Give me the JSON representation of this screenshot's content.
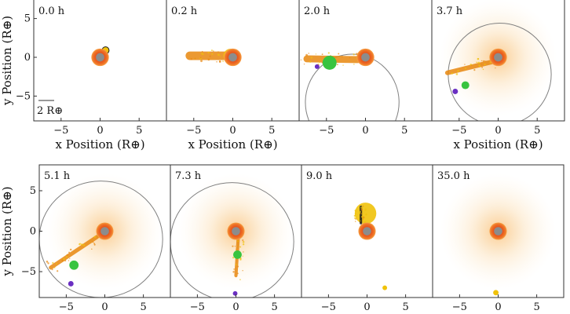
{
  "colors": {
    "frame": "#333333",
    "orbit": "#808080",
    "planet_core": "#8c8c8c",
    "planet_mantle": "#e8581c",
    "halo": "#f6a33a",
    "debris_orange": "#e8880f",
    "debris_yellow": "#f0c20a",
    "green_clump": "#38c440",
    "purple_clump": "#6a2fc2",
    "shadow": "#1a1a1a"
  },
  "scale_bar": {
    "label": "2 R⊕"
  },
  "chart_data": [
    {
      "type": "scatter",
      "time_label": "0.0 h",
      "xlim": [
        -8.5,
        8.5
      ],
      "ylim": [
        -8.2,
        8.2
      ],
      "xticks": [
        -5,
        0,
        5
      ],
      "yticks": [
        -5,
        0,
        5
      ],
      "xlabel": "x Position (R⊕)",
      "ylabel": "y Position (R⊕)",
      "planet": {
        "x": 0,
        "y": 0,
        "r": 0.9
      },
      "halo": false,
      "orbit": null,
      "features": [
        {
          "kind": "impactor",
          "x": 0.7,
          "y": 0.9,
          "r": 0.45,
          "color_key": "debris_yellow"
        }
      ]
    },
    {
      "type": "scatter",
      "time_label": "0.2 h",
      "xlim": [
        -8.5,
        8.5
      ],
      "ylim": [
        -8.2,
        8.2
      ],
      "xticks": [
        -5,
        0,
        5
      ],
      "yticks": [],
      "xlabel": "x Position (R⊕)",
      "ylabel": "",
      "planet": {
        "x": 0,
        "y": 0,
        "r": 0.9
      },
      "halo": false,
      "orbit": null,
      "features": [
        {
          "kind": "stream",
          "from": [
            -5.5,
            0.2
          ],
          "to": [
            -0.5,
            0.2
          ],
          "width": 1.1,
          "color_key": "debris_orange"
        },
        {
          "kind": "blob",
          "x": -0.3,
          "y": 0.2,
          "r": 0.9,
          "color_key": "debris_yellow"
        }
      ]
    },
    {
      "type": "scatter",
      "time_label": "2.0 h",
      "xlim": [
        -8.5,
        8.5
      ],
      "ylim": [
        -8.2,
        8.2
      ],
      "xticks": [
        -5,
        0,
        5
      ],
      "yticks": [],
      "xlabel": "",
      "ylabel": "",
      "planet": {
        "x": 0,
        "y": 0,
        "r": 0.9
      },
      "halo": false,
      "orbit": {
        "cx": -1.7,
        "cy": -5.8,
        "rx": 6.0,
        "ry": 6.2
      },
      "features": [
        {
          "kind": "stream",
          "from": [
            -7.5,
            -0.2
          ],
          "to": [
            -1.0,
            -0.3
          ],
          "width": 0.9,
          "color_key": "debris_orange"
        },
        {
          "kind": "clump",
          "x": -4.6,
          "y": -0.7,
          "r": 0.9,
          "color_key": "green_clump"
        },
        {
          "kind": "clump",
          "x": -6.2,
          "y": -1.2,
          "r": 0.3,
          "color_key": "purple_clump"
        }
      ]
    },
    {
      "type": "scatter",
      "time_label": "3.7 h",
      "xlim": [
        -8.5,
        8.5
      ],
      "ylim": [
        -8.2,
        8.2
      ],
      "xticks": [
        -5,
        0,
        5
      ],
      "yticks": [],
      "xlabel": "x Position (R⊕)",
      "ylabel": "",
      "planet": {
        "x": 0,
        "y": 0,
        "r": 0.9
      },
      "halo": true,
      "orbit": {
        "cx": 0.2,
        "cy": -2.2,
        "rx": 6.6,
        "ry": 6.6
      },
      "features": [
        {
          "kind": "stream",
          "from": [
            -6.5,
            -2.0
          ],
          "to": [
            -0.8,
            -0.6
          ],
          "width": 0.6,
          "color_key": "debris_orange"
        },
        {
          "kind": "clump",
          "x": -4.2,
          "y": -3.6,
          "r": 0.5,
          "color_key": "green_clump"
        },
        {
          "kind": "clump",
          "x": -5.5,
          "y": -4.4,
          "r": 0.35,
          "color_key": "purple_clump"
        }
      ]
    },
    {
      "type": "scatter",
      "time_label": "5.1 h",
      "xlim": [
        -8.5,
        8.5
      ],
      "ylim": [
        -8.2,
        8.2
      ],
      "xticks": [
        -5,
        0,
        5
      ],
      "yticks": [
        -5,
        0,
        5
      ],
      "xlabel": "",
      "ylabel": "y Position (R⊕)",
      "planet": {
        "x": 0,
        "y": 0,
        "r": 0.9
      },
      "halo": true,
      "orbit": {
        "cx": -0.5,
        "cy": -1.0,
        "rx": 8.0,
        "ry": 7.2
      },
      "features": [
        {
          "kind": "stream",
          "from": [
            -7.0,
            -4.5
          ],
          "to": [
            -1.0,
            -0.7
          ],
          "width": 0.5,
          "color_key": "debris_orange"
        },
        {
          "kind": "clump",
          "x": -4.0,
          "y": -4.2,
          "r": 0.6,
          "color_key": "green_clump"
        },
        {
          "kind": "clump",
          "x": -4.4,
          "y": -6.5,
          "r": 0.35,
          "color_key": "purple_clump"
        }
      ]
    },
    {
      "type": "scatter",
      "time_label": "7.3 h",
      "xlim": [
        -8.5,
        8.5
      ],
      "ylim": [
        -8.2,
        8.2
      ],
      "xticks": [
        -5,
        0,
        5
      ],
      "yticks": [],
      "xlabel": "",
      "ylabel": "",
      "planet": {
        "x": 0,
        "y": 0,
        "r": 0.9
      },
      "halo": true,
      "orbit": {
        "cx": -0.5,
        "cy": -1.3,
        "rx": 8.0,
        "ry": 7.3
      },
      "features": [
        {
          "kind": "stream",
          "from": [
            0.0,
            -5.5
          ],
          "to": [
            0.3,
            -0.8
          ],
          "width": 0.4,
          "color_key": "debris_orange"
        },
        {
          "kind": "clump",
          "x": 0.2,
          "y": -2.9,
          "r": 0.55,
          "color_key": "green_clump"
        },
        {
          "kind": "clump",
          "x": -0.1,
          "y": -7.7,
          "r": 0.3,
          "color_key": "purple_clump"
        }
      ]
    },
    {
      "type": "scatter",
      "time_label": "9.0 h",
      "xlim": [
        -8.5,
        8.5
      ],
      "ylim": [
        -8.2,
        8.2
      ],
      "xticks": [
        -5,
        0,
        5
      ],
      "yticks": [],
      "xlabel": "",
      "ylabel": "",
      "planet": {
        "x": 0,
        "y": 0,
        "r": 0.9
      },
      "halo": false,
      "orbit": null,
      "features": [
        {
          "kind": "blob",
          "x": -0.2,
          "y": 2.2,
          "r": 1.4,
          "color_key": "debris_yellow"
        },
        {
          "kind": "stream",
          "from": [
            -0.8,
            1.0
          ],
          "to": [
            -0.8,
            3.0
          ],
          "width": 0.3,
          "color_key": "shadow"
        },
        {
          "kind": "clump",
          "x": 2.3,
          "y": -7.0,
          "r": 0.3,
          "color_key": "debris_yellow"
        }
      ]
    },
    {
      "type": "scatter",
      "time_label": "35.0 h",
      "xlim": [
        -8.5,
        8.5
      ],
      "ylim": [
        -8.2,
        8.2
      ],
      "xticks": [
        -5,
        0,
        5
      ],
      "yticks": [],
      "xlabel": "",
      "ylabel": "",
      "planet": {
        "x": 0,
        "y": 0,
        "r": 0.9
      },
      "halo": true,
      "orbit": null,
      "features": [
        {
          "kind": "clump",
          "x": -0.3,
          "y": -7.6,
          "r": 0.35,
          "color_key": "debris_yellow"
        }
      ]
    }
  ]
}
